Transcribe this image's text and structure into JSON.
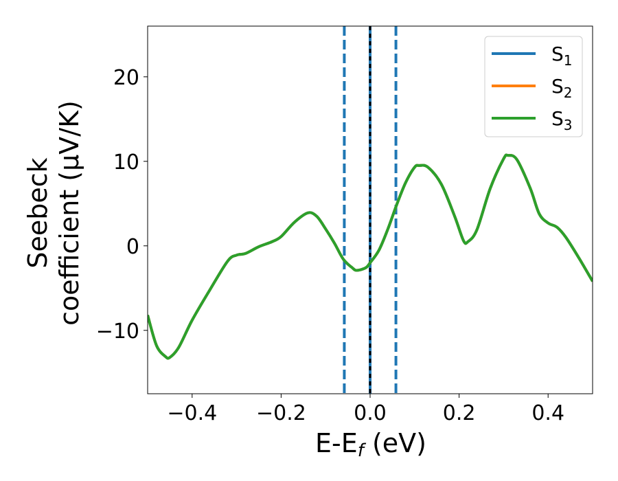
{
  "chart_data": {
    "type": "line",
    "xlabel": "E-E",
    "xlabel_sub": "f",
    "xlabel_unit": " (eV)",
    "ylabel_line1": "Seebeck",
    "ylabel_line2": "coefficient  (μV/K)",
    "xlim": [
      -0.5,
      0.5
    ],
    "ylim": [
      -17.5,
      26
    ],
    "xticks": [
      {
        "value": -0.4,
        "label": "−0.4"
      },
      {
        "value": -0.2,
        "label": "−0.2"
      },
      {
        "value": 0.0,
        "label": "0.0"
      },
      {
        "value": 0.2,
        "label": "0.2"
      },
      {
        "value": 0.4,
        "label": "0.4"
      }
    ],
    "yticks": [
      {
        "value": -10,
        "label": "−10"
      },
      {
        "value": 0,
        "label": "0"
      },
      {
        "value": 10,
        "label": "10"
      },
      {
        "value": 20,
        "label": "20"
      }
    ],
    "grid": false,
    "legend_position": "top-right",
    "series": [
      {
        "name": "S",
        "sub": "1",
        "color": "#1f77b4"
      },
      {
        "name": "S",
        "sub": "2",
        "color": "#ff7f0e"
      },
      {
        "name": "S",
        "sub": "3",
        "color": "#2ca02c"
      }
    ],
    "curve_points": [
      [
        -0.5,
        -8.2
      ],
      [
        -0.48,
        -11.8
      ],
      [
        -0.46,
        -13.1
      ],
      [
        -0.45,
        -13.2
      ],
      [
        -0.43,
        -12.0
      ],
      [
        -0.4,
        -8.8
      ],
      [
        -0.36,
        -5.2
      ],
      [
        -0.32,
        -1.8
      ],
      [
        -0.3,
        -1.1
      ],
      [
        -0.28,
        -0.9
      ],
      [
        -0.25,
        -0.1
      ],
      [
        -0.22,
        0.5
      ],
      [
        -0.2,
        1.1
      ],
      [
        -0.17,
        2.8
      ],
      [
        -0.14,
        3.9
      ],
      [
        -0.12,
        3.5
      ],
      [
        -0.1,
        2.0
      ],
      [
        -0.08,
        0.3
      ],
      [
        -0.06,
        -1.6
      ],
      [
        -0.04,
        -2.6
      ],
      [
        -0.03,
        -2.9
      ],
      [
        -0.01,
        -2.6
      ],
      [
        0.0,
        -2.0
      ],
      [
        0.02,
        -0.5
      ],
      [
        0.04,
        2.0
      ],
      [
        0.06,
        4.9
      ],
      [
        0.08,
        7.5
      ],
      [
        0.1,
        9.3
      ],
      [
        0.11,
        9.5
      ],
      [
        0.13,
        9.3
      ],
      [
        0.16,
        7.3
      ],
      [
        0.19,
        3.5
      ],
      [
        0.21,
        0.6
      ],
      [
        0.22,
        0.5
      ],
      [
        0.24,
        1.9
      ],
      [
        0.27,
        6.8
      ],
      [
        0.3,
        10.3
      ],
      [
        0.31,
        10.7
      ],
      [
        0.33,
        10.2
      ],
      [
        0.36,
        6.8
      ],
      [
        0.38,
        3.8
      ],
      [
        0.4,
        2.7
      ],
      [
        0.42,
        2.2
      ],
      [
        0.44,
        1.0
      ],
      [
        0.47,
        -1.5
      ],
      [
        0.5,
        -4.2
      ]
    ],
    "vlines": [
      {
        "x": -0.058,
        "style": "dashed",
        "color": "#1f77b4"
      },
      {
        "x": 0.058,
        "style": "dashed",
        "color": "#1f77b4"
      },
      {
        "x": 0.0,
        "style": "solid",
        "color": "#1f77b4"
      },
      {
        "x": 0.0,
        "style": "dashed",
        "color": "#000000"
      }
    ]
  }
}
